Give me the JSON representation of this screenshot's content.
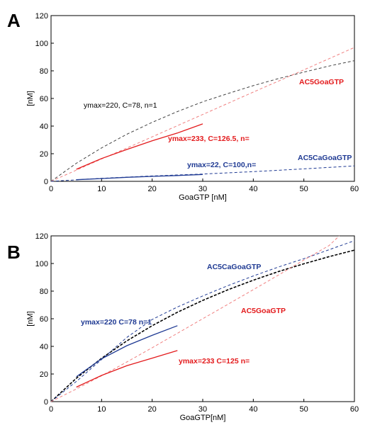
{
  "chart_data": [
    {
      "panel_label": "A",
      "type": "line",
      "xlabel": "GoaGTP [nM]",
      "ylabel": "[nM]",
      "xlim": [
        0,
        60
      ],
      "ylim": [
        0,
        120
      ],
      "xticks": [
        "0",
        "10",
        "20",
        "30",
        "40",
        "50",
        "60"
      ],
      "yticks": [
        "0",
        "20",
        "40",
        "60",
        "80",
        "100",
        "120"
      ],
      "grid": false,
      "series": [
        {
          "color": "#444444",
          "style": "dashed",
          "x": [
            0,
            5,
            10,
            15,
            20,
            25,
            30,
            35,
            40,
            45,
            50,
            55,
            60
          ],
          "y": [
            0,
            13.1,
            24.2,
            34.1,
            42.7,
            50.5,
            57.6,
            63.6,
            69.3,
            74.4,
            79.1,
            83.5,
            87.4
          ]
        },
        {
          "color": "#f08080",
          "style": "dashed",
          "x": [
            0,
            5,
            10,
            15,
            20,
            25,
            30,
            35,
            40,
            45,
            50,
            55,
            60
          ],
          "y": [
            0,
            8.1,
            16.2,
            24.1,
            32.2,
            40.3,
            48.4,
            56.5,
            64.6,
            72.6,
            80.7,
            88.8,
            96.9
          ]
        },
        {
          "color": "#1f3a93",
          "style": "dashed",
          "x": [
            0,
            10,
            20,
            30,
            40,
            50,
            60
          ],
          "y": [
            0,
            2.2,
            3.9,
            5.3,
            7.0,
            9.0,
            11.2
          ]
        },
        {
          "color": "#e31a1c",
          "style": "solid",
          "x": [
            5,
            10,
            15,
            20,
            25,
            30
          ],
          "y": [
            8.7,
            16.5,
            23.1,
            29.4,
            35.0,
            41.6
          ]
        },
        {
          "color": "#1f3a93",
          "style": "solid",
          "x": [
            5,
            10,
            15,
            20,
            25,
            30
          ],
          "y": [
            1.2,
            2.0,
            2.9,
            3.6,
            4.2,
            5.0
          ]
        }
      ],
      "annotations": [
        {
          "text": "ymax=220, C=78, n=1",
          "color": "#000000",
          "bold": false
        },
        {
          "text": "AC5GoaGTP",
          "color": "#e31a1c",
          "bold": true
        },
        {
          "text": "ymax=233, C=126.5, n=",
          "color": "#e31a1c",
          "bold": true
        },
        {
          "text": "AC5CaGoaGTP",
          "color": "#1f3a93",
          "bold": true
        },
        {
          "text": "ymax=22, C=100,n=",
          "color": "#1f3a93",
          "bold": true
        }
      ]
    },
    {
      "panel_label": "B",
      "type": "line",
      "xlabel": "GoaGTP[nM]",
      "ylabel": "[nM]",
      "xlim": [
        0,
        60
      ],
      "ylim": [
        0,
        120
      ],
      "xticks": [
        "0",
        "10",
        "20",
        "30",
        "40",
        "50",
        "60"
      ],
      "yticks": [
        "0",
        "20",
        "40",
        "60",
        "80",
        "100",
        "120"
      ],
      "grid": false,
      "series": [
        {
          "color": "#000000",
          "style": "dashed-bold",
          "x": [
            0,
            5,
            10,
            15,
            20,
            25,
            30,
            35,
            40,
            45,
            50,
            55,
            60
          ],
          "y": [
            0,
            16.9,
            31.4,
            44.0,
            55.0,
            64.7,
            73.3,
            81.0,
            87.9,
            94.2,
            99.8,
            105.0,
            109.7
          ]
        },
        {
          "color": "#1f3a93",
          "style": "dashed",
          "x": [
            0,
            5,
            10,
            15,
            20,
            25,
            30,
            35,
            40,
            45,
            50,
            55,
            60
          ],
          "y": [
            0,
            14.6,
            30.5,
            46.5,
            59.5,
            68.5,
            76.5,
            84.0,
            91.0,
            97.5,
            103.5,
            110.0,
            116.5
          ]
        },
        {
          "color": "#f08080",
          "style": "dashed",
          "x": [
            0,
            5,
            10,
            15,
            20,
            25,
            30,
            35,
            40,
            45,
            50,
            55,
            57
          ],
          "y": [
            0,
            9.2,
            18.7,
            28.7,
            39.0,
            49.5,
            60.0,
            70.5,
            81.0,
            91.7,
            102.5,
            113.0,
            120.0
          ]
        },
        {
          "color": "#e31a1c",
          "style": "solid",
          "x": [
            5,
            10,
            15,
            20,
            25
          ],
          "y": [
            10.5,
            19.0,
            26.0,
            31.5,
            37.0
          ]
        },
        {
          "color": "#1f3a93",
          "style": "solid",
          "x": [
            5,
            10,
            15,
            20,
            25
          ],
          "y": [
            18.0,
            31.0,
            40.5,
            48.0,
            55.0
          ]
        }
      ],
      "annotations": [
        {
          "text": "AC5CaGoaGTP",
          "color": "#1f3a93",
          "bold": true
        },
        {
          "text": "AC5GoaGTP",
          "color": "#e31a1c",
          "bold": true
        },
        {
          "text": "ymax=220 C=78 n=1",
          "color": "#1f3a93",
          "bold": true
        },
        {
          "text": "ymax=233 C=125 n=",
          "color": "#e31a1c",
          "bold": true
        }
      ]
    }
  ]
}
